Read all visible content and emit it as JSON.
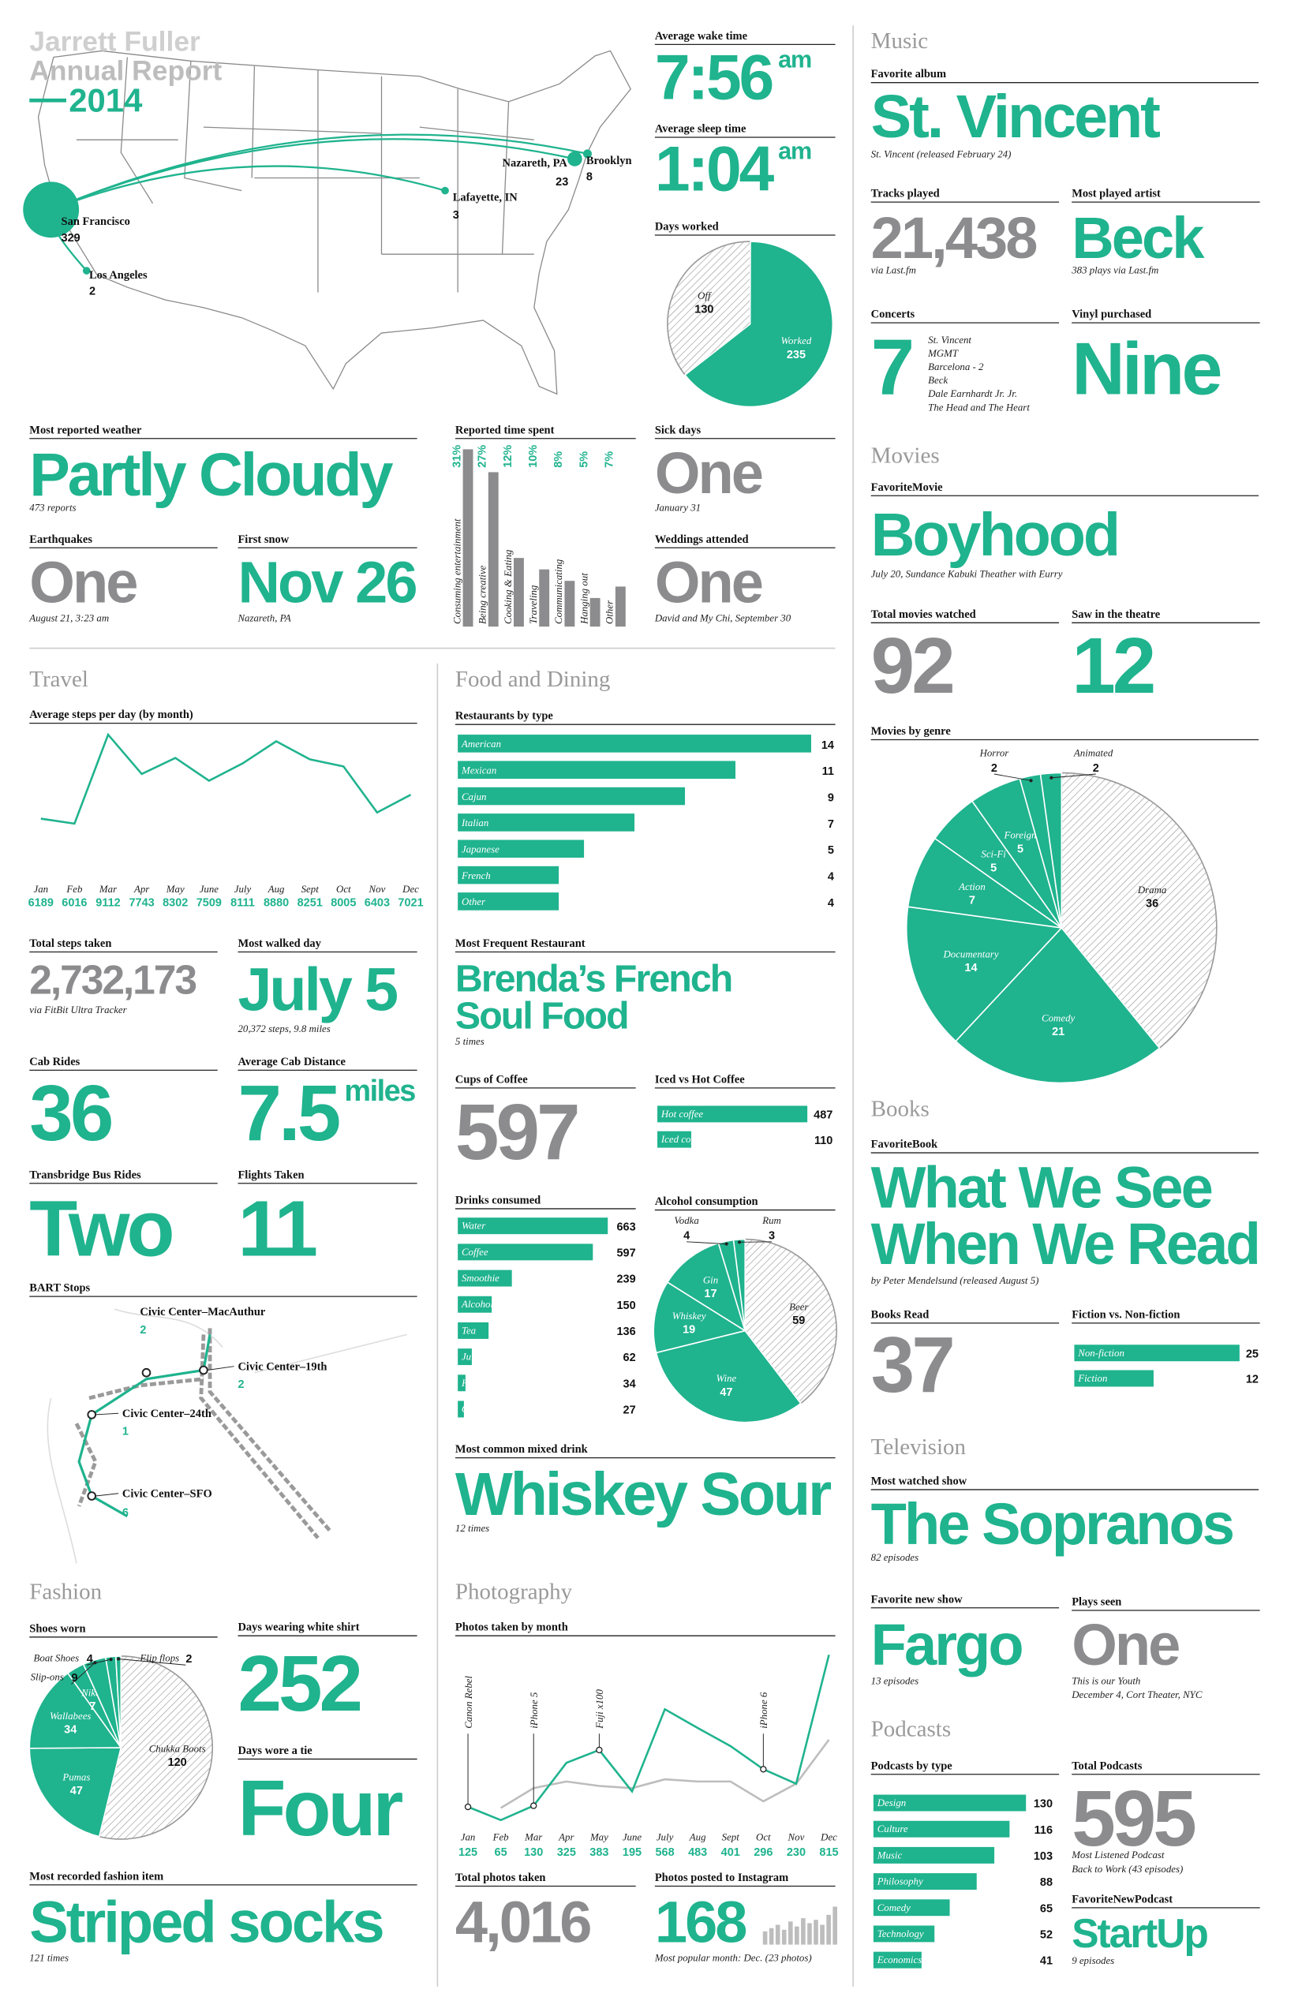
{
  "header": {
    "name": "Jarrett Fuller",
    "title": "Annual Report",
    "year": "2014"
  },
  "sections": [
    "Music",
    "Movies",
    "Books",
    "Television",
    "Podcasts",
    "Travel",
    "Food and Dining",
    "Fashion",
    "Photography"
  ],
  "stats": [
    {
      "label": "Average wake time",
      "value": "7:56",
      "unit": "am"
    },
    {
      "label": "Average sleep time",
      "value": "1:04",
      "unit": "am"
    },
    {
      "label": "Favorite album",
      "value": "St. Vincent",
      "notes": [
        "St. Vincent (released February 24)"
      ]
    },
    {
      "label": "Tracks played",
      "value": "21,438",
      "notes": [
        "via Last.fm"
      ]
    },
    {
      "label": "Most played artist",
      "value": "Beck",
      "notes": [
        "383 plays via Last.fm"
      ]
    },
    {
      "label": "Concerts",
      "value": 7,
      "list": [
        "St. Vincent",
        "MGMT",
        "Barcelona - 2",
        "Beck",
        "Dale Earnhardt Jr. Jr.",
        "The Head and The Heart"
      ]
    },
    {
      "label": "Vinyl purchased",
      "value": "Nine"
    },
    {
      "label": "FavoriteMovie",
      "value": "Boyhood",
      "notes": [
        "July 20, Sundance Kabuki Theather with Eurry"
      ]
    },
    {
      "label": "Total movies watched",
      "value": 92
    },
    {
      "label": "Saw in the theatre",
      "value": 12
    },
    {
      "label": "Most reported weather",
      "value": "Partly Cloudy",
      "notes": [
        "473 reports"
      ]
    },
    {
      "label": "Sick days",
      "value": "One",
      "notes": [
        "January 31"
      ]
    },
    {
      "label": "Earthquakes",
      "value": "One",
      "notes": [
        "August 21, 3:23 am"
      ]
    },
    {
      "label": "First snow",
      "value": "Nov 26",
      "notes": [
        "Nazareth, PA"
      ]
    },
    {
      "label": "Weddings attended",
      "value": "One",
      "notes": [
        "David and My Chi, September 30"
      ]
    },
    {
      "label": "Total steps taken",
      "value": "2,732,173",
      "notes": [
        "via FitBit Ultra Tracker"
      ]
    },
    {
      "label": "Most walked day",
      "value": "July 5",
      "notes": [
        "20,372 steps, 9.8 miles"
      ]
    },
    {
      "label": "Cab Rides",
      "value": 36
    },
    {
      "label": "Average Cab Distance",
      "value": 7.5,
      "unit": "miles"
    },
    {
      "label": "Transbridge Bus Rides",
      "value": "Two"
    },
    {
      "label": "Flights Taken",
      "value": 11
    },
    {
      "label": "Most Frequent Restaurant",
      "value": [
        "Brenda’s French",
        "Soul Food"
      ],
      "notes": [
        "5 times"
      ]
    },
    {
      "label": "Cups of Coffee",
      "value": 597
    },
    {
      "label": "Most common mixed drink",
      "value": "Whiskey Sour",
      "notes": [
        "12 times"
      ]
    },
    {
      "label": "FavoriteBook",
      "value": [
        "What We See",
        "When We Read"
      ],
      "notes": [
        "by Peter Mendelsund (released August 5)"
      ]
    },
    {
      "label": "Books Read",
      "value": 37
    },
    {
      "label": "Most watched show",
      "value": "The Sopranos",
      "notes": [
        "82 episodes"
      ]
    },
    {
      "label": "Favorite new show",
      "value": "Fargo",
      "notes": [
        "13 episodes"
      ]
    },
    {
      "label": "Plays seen",
      "value": "One",
      "notes": [
        "This is our Youth",
        "December 4, Cort Theater, NYC"
      ]
    },
    {
      "label": "Total Podcasts",
      "value": 595,
      "notes": [
        "Most Listened Podcast",
        "Back to Work (43 episodes)"
      ]
    },
    {
      "label": "FavoriteNewPodcast",
      "value": "StartUp",
      "notes": [
        "9 episodes"
      ]
    },
    {
      "label": "Days wearing white shirt",
      "value": 252
    },
    {
      "label": "Days wore a tie",
      "value": "Four"
    },
    {
      "label": "Most recorded fashion item",
      "value": "Striped socks",
      "notes": [
        "121 times"
      ]
    },
    {
      "label": "Total photos taken",
      "value": "4,016"
    },
    {
      "label": "Photos posted to Instagram",
      "value": 168,
      "notes": [
        "Most popular month: Dec. (23 photos)"
      ]
    }
  ],
  "chart_data": [
    {
      "type": "map",
      "color": "#1fb38e",
      "places": [
        {
          "name": "San Francisco",
          "value": 329
        },
        {
          "name": "Los Angeles",
          "value": 2
        },
        {
          "name": "Lafayette, IN",
          "value": 3
        },
        {
          "name": "Nazareth, PA",
          "value": 23
        },
        {
          "name": "Brooklyn",
          "value": 8
        }
      ]
    },
    {
      "type": "pie",
      "title": "Days worked",
      "categories": [
        "Off",
        "Worked"
      ],
      "values": [
        130,
        235
      ],
      "colors": [
        "url(#hatch)",
        "#1fb38e"
      ]
    },
    {
      "type": "vbar",
      "title": "Reported time spent",
      "categories": [
        "Consuming entertainment",
        "Being creative",
        "Cooking & Eating",
        "Traveling",
        "Communicating",
        "Hanging out",
        "Other"
      ],
      "values": [
        31,
        27,
        12,
        10,
        8,
        5,
        7
      ],
      "value_labels": [
        "31%",
        "27%",
        "12%",
        "10%",
        "8%",
        "5%",
        "7%"
      ],
      "color": "#8c8c8e",
      "label_color": "#1fb38e"
    },
    {
      "type": "line",
      "title": "Average steps per day (by month)",
      "categories": [
        "Jan",
        "Feb",
        "Mar",
        "Apr",
        "May",
        "June",
        "July",
        "Aug",
        "Sept",
        "Oct",
        "Nov",
        "Dec"
      ],
      "values": [
        6189,
        6016,
        9112,
        7743,
        8302,
        7509,
        8111,
        8880,
        8251,
        8005,
        6403,
        7021
      ],
      "color": "#1fb38e"
    },
    {
      "type": "hbar",
      "title": "Restaurants by type",
      "categories": [
        "American",
        "Mexican",
        "Cajun",
        "Italian",
        "Japanese",
        "French",
        "Other"
      ],
      "values": [
        14,
        11,
        9,
        7,
        5,
        4,
        4
      ],
      "color": "#1fb38e"
    },
    {
      "type": "hbar",
      "title": "Iced vs Hot Coffee",
      "categories": [
        "Hot coffee",
        "Iced coffee"
      ],
      "values": [
        487,
        110
      ],
      "color": "#1fb38e"
    },
    {
      "type": "hbar",
      "title": "Drinks consumed",
      "categories": [
        "Water",
        "Coffee",
        "Smoothie",
        "Alcohol",
        "Tea",
        "Juice",
        "Horchata",
        "Other"
      ],
      "values": [
        663,
        597,
        239,
        150,
        136,
        62,
        34,
        27
      ],
      "color": "#1fb38e"
    },
    {
      "type": "pie",
      "title": "Alcohol consumption",
      "categories": [
        "Beer",
        "Wine",
        "Whiskey",
        "Gin",
        "Vodka",
        "Rum"
      ],
      "values": [
        59,
        47,
        19,
        17,
        4,
        3
      ],
      "colors": [
        "url(#hatch)",
        "#1fb38e",
        "#1fb38e",
        "#1fb38e",
        "#1fb38e",
        "#1fb38e"
      ]
    },
    {
      "type": "route",
      "title": "BART Stops",
      "color": "#1fb38e",
      "stops": [
        {
          "name": "Civic Center–MacAuthur",
          "value": 2
        },
        {
          "name": "Civic Center–19th",
          "value": 2
        },
        {
          "name": "Civic Center–24th",
          "value": 1
        },
        {
          "name": "Civic Center–SFO",
          "value": 6
        }
      ]
    },
    {
      "type": "pie",
      "title": "Shoes worn",
      "categories": [
        "Chukka Boots",
        "Pumas",
        "Wallabees",
        "Nikes",
        "Slip-ons",
        "Boat Shoes",
        "Flip flops"
      ],
      "values": [
        120,
        47,
        34,
        7,
        9,
        4,
        2
      ],
      "colors": [
        "url(#hatch)",
        "#1fb38e",
        "#1fb38e",
        "#1fb38e",
        "#1fb38e",
        "#1fb38e",
        "#1fb38e"
      ]
    },
    {
      "type": "line",
      "title": "Photos taken by month",
      "categories": [
        "Jan",
        "Feb",
        "Mar",
        "Apr",
        "May",
        "June",
        "July",
        "Aug",
        "Sept",
        "Oct",
        "Nov",
        "Dec"
      ],
      "series": [
        {
          "color": "#1fb38e",
          "values": [
            125,
            65,
            130,
            325,
            383,
            195,
            568,
            483,
            401,
            296,
            230,
            815
          ]
        },
        {
          "color": "#bdbdbd",
          "values": [
            null,
            120,
            210,
            240,
            220,
            210,
            250,
            240,
            240,
            150,
            230,
            430
          ]
        }
      ],
      "annotations": [
        {
          "text": "Canon Rebel",
          "category": "Jan"
        },
        {
          "text": "iPhone 5",
          "category": "Mar"
        },
        {
          "text": "Fuji x100",
          "category": "May"
        },
        {
          "text": "iPhone 6",
          "category": "Oct"
        }
      ]
    },
    {
      "type": "spark",
      "values": [
        8,
        10,
        12,
        9,
        14,
        11,
        16,
        13,
        15,
        12,
        18,
        23
      ],
      "color": "#bdbdbd"
    },
    {
      "type": "pie",
      "title": "Movies by genre",
      "categories": [
        "Drama",
        "Comedy",
        "Documentary",
        "Action",
        "Sci-Fi",
        "Foreign",
        "Horror",
        "Animated"
      ],
      "values": [
        36,
        21,
        14,
        7,
        5,
        5,
        2,
        2
      ],
      "colors": [
        "url(#hatch)",
        "#1fb38e",
        "#1fb38e",
        "#1fb38e",
        "#1fb38e",
        "#1fb38e",
        "#1fb38e",
        "#1fb38e"
      ]
    },
    {
      "type": "hbar",
      "title": "Fiction vs. Non-fiction",
      "categories": [
        "Non-fiction",
        "Fiction"
      ],
      "values": [
        25,
        12
      ],
      "color": "#1fb38e"
    },
    {
      "type": "hbar",
      "title": "Podcasts by type",
      "categories": [
        "Design",
        "Culture",
        "Music",
        "Philosophy",
        "Comedy",
        "Technology",
        "Economics"
      ],
      "values": [
        130,
        116,
        103,
        88,
        65,
        52,
        41
      ],
      "color": "#1fb38e"
    }
  ]
}
